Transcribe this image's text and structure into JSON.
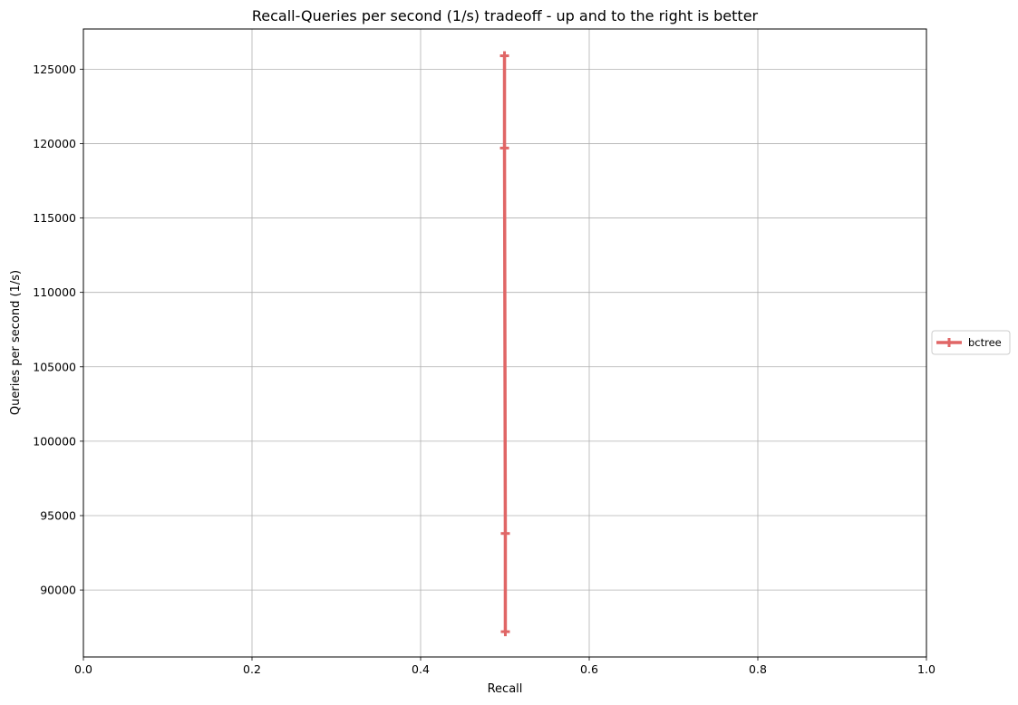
{
  "chart_data": {
    "type": "line",
    "title": "Recall-Queries per second (1/s) tradeoff - up and to the right is better",
    "xlabel": "Recall",
    "ylabel": "Queries per second (1/s)",
    "xlim": [
      0.0,
      1.0
    ],
    "ylim": [
      85500,
      127700
    ],
    "xticks": [
      0.0,
      0.2,
      0.4,
      0.6,
      0.8,
      1.0
    ],
    "xtick_labels": [
      "0.0",
      "0.2",
      "0.4",
      "0.6",
      "0.8",
      "1.0"
    ],
    "yticks": [
      90000,
      95000,
      100000,
      105000,
      110000,
      115000,
      120000,
      125000
    ],
    "ytick_labels": [
      "90000",
      "95000",
      "100000",
      "105000",
      "110000",
      "115000",
      "120000",
      "125000"
    ],
    "grid": true,
    "legend_position": "center-right-outside",
    "series": [
      {
        "name": "bctree",
        "color": "#e06666",
        "marker": "plus",
        "x": [
          0.4995,
          0.4995,
          0.5005,
          0.5005
        ],
        "y": [
          125900,
          119700,
          93800,
          87200
        ]
      }
    ]
  }
}
